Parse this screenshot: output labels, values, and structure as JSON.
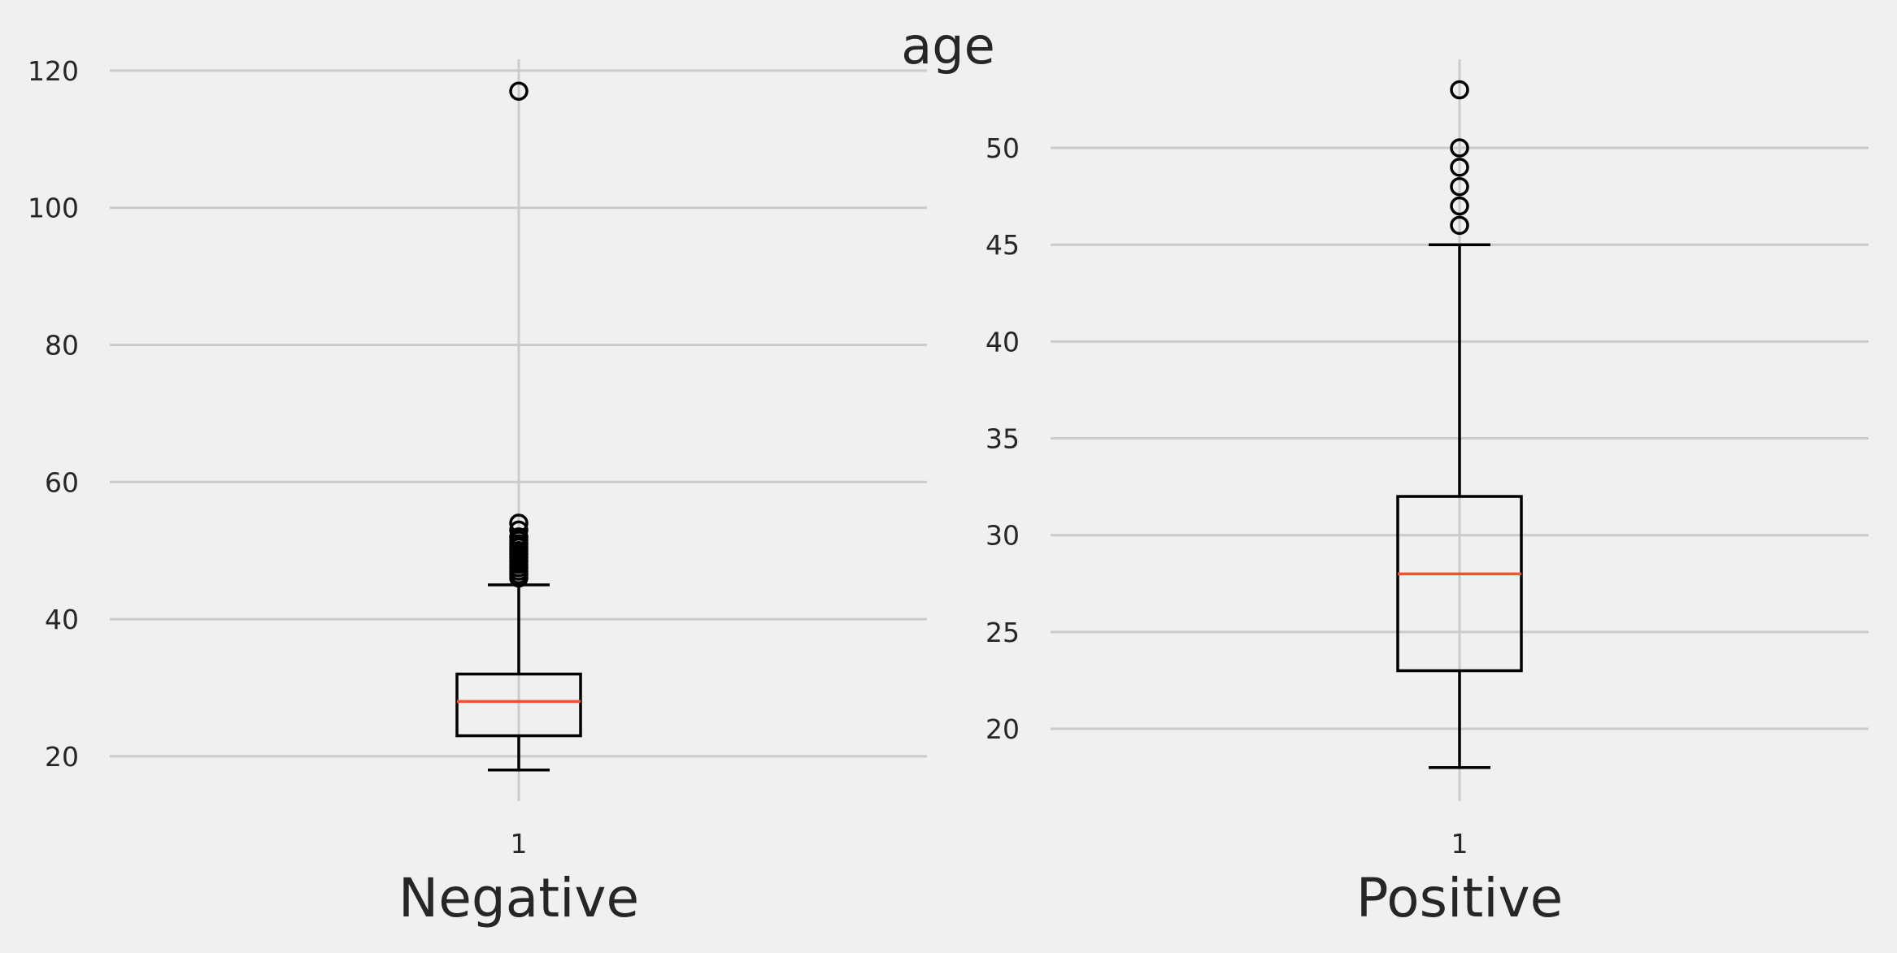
{
  "chart_data": {
    "type": "boxplot",
    "title": "age",
    "colors": {
      "median": "#fc4f30",
      "box": "#000000",
      "grid": "#cbcbcb",
      "background": "#f0f0f0"
    },
    "grid": true,
    "subplots": [
      {
        "xlabel": "Negative",
        "categories": [
          "1"
        ],
        "ylim": [
          13,
          122
        ],
        "yticks": [
          20,
          40,
          60,
          80,
          100,
          120
        ],
        "box": {
          "whisker_low": 18,
          "q1": 23,
          "median": 28,
          "q3": 32,
          "whisker_high": 45
        },
        "fliers": [
          46,
          46.5,
          47,
          47.5,
          48,
          48.5,
          49,
          49.5,
          50,
          50.5,
          51,
          51.5,
          52,
          53,
          54,
          117
        ]
      },
      {
        "xlabel": "Positive",
        "categories": [
          "1"
        ],
        "ylim": [
          16.1,
          54.7
        ],
        "yticks": [
          20,
          25,
          30,
          35,
          40,
          45,
          50
        ],
        "box": {
          "whisker_low": 18,
          "q1": 23,
          "median": 28,
          "q3": 32,
          "whisker_high": 45
        },
        "fliers": [
          46,
          47,
          48,
          49,
          50,
          53
        ]
      }
    ]
  }
}
